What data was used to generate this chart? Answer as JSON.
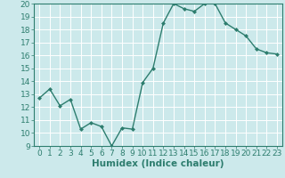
{
  "x": [
    0,
    1,
    2,
    3,
    4,
    5,
    6,
    7,
    8,
    9,
    10,
    11,
    12,
    13,
    14,
    15,
    16,
    17,
    18,
    19,
    20,
    21,
    22,
    23
  ],
  "y": [
    12.7,
    13.4,
    12.1,
    12.6,
    10.3,
    10.8,
    10.5,
    9.0,
    10.4,
    10.3,
    13.9,
    15.0,
    18.5,
    20.0,
    19.6,
    19.4,
    20.0,
    20.0,
    18.5,
    18.0,
    17.5,
    16.5,
    16.2,
    16.1
  ],
  "xlabel": "Humidex (Indice chaleur)",
  "line_color": "#2d7d6e",
  "marker": "D",
  "marker_size": 2.0,
  "bg_color": "#cce9eb",
  "grid_color": "#ffffff",
  "ylim": [
    9,
    20
  ],
  "xlim": [
    -0.5,
    23.5
  ],
  "yticks": [
    9,
    10,
    11,
    12,
    13,
    14,
    15,
    16,
    17,
    18,
    19,
    20
  ],
  "xticks": [
    0,
    1,
    2,
    3,
    4,
    5,
    6,
    7,
    8,
    9,
    10,
    11,
    12,
    13,
    14,
    15,
    16,
    17,
    18,
    19,
    20,
    21,
    22,
    23
  ],
  "tick_color": "#2d7d6e",
  "label_color": "#2d7d6e",
  "font_size": 6.5,
  "xlabel_fontsize": 7.5,
  "linewidth": 1.0
}
